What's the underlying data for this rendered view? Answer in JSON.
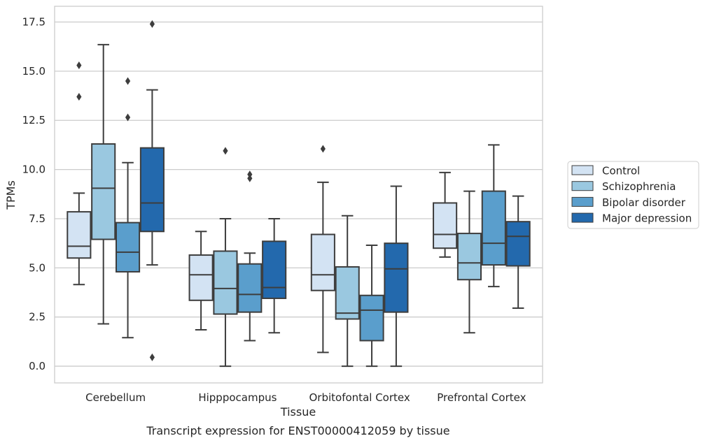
{
  "chart_data": {
    "type": "boxplot",
    "caption": "Transcript expression for ENST00000412059 by tissue",
    "xlabel": "Tissue",
    "ylabel": "TPMs",
    "ylim": [
      -0.85,
      18.3
    ],
    "yticks": [
      0.0,
      2.5,
      5.0,
      7.5,
      10.0,
      12.5,
      15.0,
      17.5
    ],
    "ytick_labels": [
      "0.0",
      "2.5",
      "5.0",
      "7.5",
      "10.0",
      "12.5",
      "15.0",
      "17.5"
    ],
    "grid": "horizontal",
    "legend_position": "right, outside plot",
    "categories": [
      "Cerebellum",
      "Hipppocampus",
      "Orbitofontal Cortex",
      "Prefrontal Cortex"
    ],
    "series": [
      {
        "name": "Control",
        "color": "#d3e3f3",
        "boxes": [
          {
            "whislo": 4.15,
            "q1": 5.5,
            "med": 6.1,
            "q3": 7.85,
            "whishi": 8.8,
            "fliers": [
              13.7,
              15.3
            ]
          },
          {
            "whislo": 1.85,
            "q1": 3.35,
            "med": 4.65,
            "q3": 5.65,
            "whishi": 6.85,
            "fliers": []
          },
          {
            "whislo": 0.7,
            "q1": 3.85,
            "med": 4.65,
            "q3": 6.7,
            "whishi": 9.35,
            "fliers": [
              11.05
            ]
          },
          {
            "whislo": 5.55,
            "q1": 6.0,
            "med": 6.7,
            "q3": 8.3,
            "whishi": 9.85,
            "fliers": []
          }
        ]
      },
      {
        "name": "Schizophrenia",
        "color": "#9ac8e0",
        "boxes": [
          {
            "whislo": 2.15,
            "q1": 6.45,
            "med": 9.05,
            "q3": 11.3,
            "whishi": 16.35,
            "fliers": []
          },
          {
            "whislo": 0.0,
            "q1": 2.65,
            "med": 3.95,
            "q3": 5.85,
            "whishi": 7.5,
            "fliers": [
              10.95
            ]
          },
          {
            "whislo": 0.0,
            "q1": 2.4,
            "med": 2.7,
            "q3": 5.05,
            "whishi": 7.65,
            "fliers": []
          },
          {
            "whislo": 1.7,
            "q1": 4.4,
            "med": 5.25,
            "q3": 6.75,
            "whishi": 8.9,
            "fliers": []
          }
        ]
      },
      {
        "name": "Bipolar disorder",
        "color": "#5a9ecc",
        "boxes": [
          {
            "whislo": 1.45,
            "q1": 4.8,
            "med": 5.8,
            "q3": 7.3,
            "whishi": 10.35,
            "fliers": [
              12.65,
              14.5
            ]
          },
          {
            "whislo": 1.3,
            "q1": 2.75,
            "med": 3.65,
            "q3": 5.2,
            "whishi": 5.75,
            "fliers": [
              9.55,
              9.75
            ]
          },
          {
            "whislo": 0.0,
            "q1": 1.3,
            "med": 2.85,
            "q3": 3.6,
            "whishi": 6.15,
            "fliers": []
          },
          {
            "whislo": 4.05,
            "q1": 5.15,
            "med": 6.25,
            "q3": 8.9,
            "whishi": 11.25,
            "fliers": []
          }
        ]
      },
      {
        "name": "Major depression",
        "color": "#2369ad",
        "boxes": [
          {
            "whislo": 5.15,
            "q1": 6.85,
            "med": 8.3,
            "q3": 11.1,
            "whishi": 14.05,
            "fliers": [
              0.45,
              17.4
            ]
          },
          {
            "whislo": 1.7,
            "q1": 3.45,
            "med": 4.0,
            "q3": 6.35,
            "whishi": 7.5,
            "fliers": []
          },
          {
            "whislo": 0.0,
            "q1": 2.75,
            "med": 4.95,
            "q3": 6.25,
            "whishi": 9.15,
            "fliers": []
          },
          {
            "whislo": 2.95,
            "q1": 5.1,
            "med": 6.6,
            "q3": 7.35,
            "whishi": 8.65,
            "fliers": []
          }
        ]
      }
    ]
  }
}
